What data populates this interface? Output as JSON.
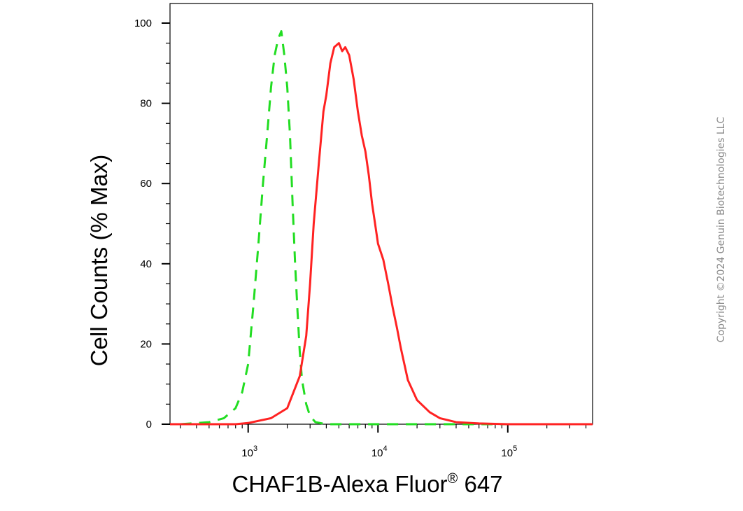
{
  "chart_data": {
    "type": "line",
    "xlabel": "CHAF1B-Alexa Fluor",
    "xlabel_superscript": "®",
    "xlabel_suffix": " 647",
    "ylabel": "Cell Counts (% Max)",
    "x_scale": "log",
    "xlim": [
      250,
      450000
    ],
    "ylim": [
      0,
      100
    ],
    "y_ticks": [
      0,
      20,
      40,
      60,
      80,
      100
    ],
    "x_ticks": [
      {
        "value": 1000,
        "base": "10",
        "exp": "3"
      },
      {
        "value": 10000,
        "base": "10",
        "exp": "4"
      },
      {
        "value": 100000,
        "base": "10",
        "exp": "5"
      }
    ],
    "grid": false,
    "legend": "none",
    "series": [
      {
        "color": "#22dd22",
        "style": "dashed",
        "x": [
          300,
          500,
          650,
          800,
          900,
          1000,
          1100,
          1200,
          1300,
          1400,
          1500,
          1600,
          1700,
          1800,
          1900,
          2000,
          2100,
          2200,
          2300,
          2400,
          2500,
          2600,
          2800,
          3000,
          3300,
          4000,
          10000,
          100000,
          450000
        ],
        "y": [
          0,
          0.5,
          1.5,
          4,
          8,
          15,
          30,
          45,
          60,
          72,
          84,
          92,
          96,
          98,
          92,
          84,
          72,
          55,
          40,
          28,
          18,
          11,
          5,
          2,
          0.5,
          0,
          0,
          0,
          0
        ]
      },
      {
        "color": "#ff2222",
        "style": "solid",
        "x": [
          250,
          800,
          1000,
          1500,
          2000,
          2500,
          2800,
          3000,
          3200,
          3500,
          3800,
          4000,
          4300,
          4600,
          5000,
          5300,
          5600,
          6000,
          6500,
          7000,
          7500,
          8000,
          8500,
          9000,
          9500,
          10000,
          11000,
          12000,
          13000,
          14000,
          15000,
          17000,
          20000,
          25000,
          30000,
          40000,
          60000,
          100000,
          450000
        ],
        "y": [
          0,
          0,
          0.3,
          1.5,
          4,
          12,
          22,
          35,
          50,
          65,
          78,
          82,
          90,
          94,
          95,
          93,
          94,
          92,
          86,
          78,
          72,
          68,
          62,
          55,
          50,
          45,
          41,
          35,
          29,
          24,
          19,
          11,
          6,
          3,
          1.5,
          0.5,
          0.2,
          0,
          0
        ]
      }
    ]
  },
  "copyright": "Copyright ©2024 Genuin Biotechnologies LLC"
}
